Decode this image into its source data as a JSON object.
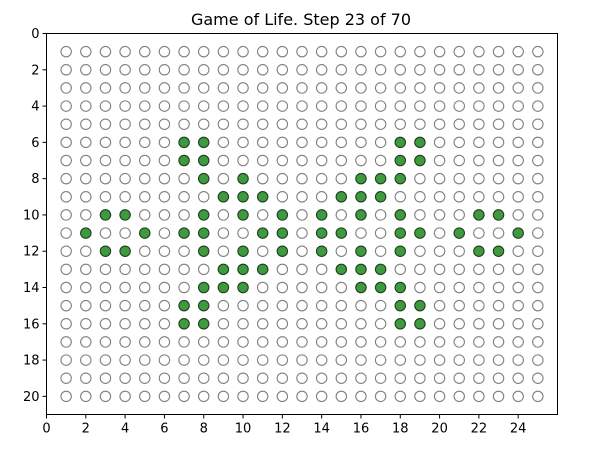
{
  "chart_data": {
    "type": "scatter",
    "title": "Game of Life. Step 23 of 70",
    "xlabel": "",
    "ylabel": "",
    "xlim": [
      0,
      26
    ],
    "ylim": [
      21,
      0
    ],
    "x_ticks": [
      0,
      2,
      4,
      6,
      8,
      10,
      12,
      14,
      16,
      18,
      20,
      22,
      24
    ],
    "y_ticks": [
      0,
      2,
      4,
      6,
      8,
      10,
      12,
      14,
      16,
      18,
      20
    ],
    "grid_cols": [
      1,
      25
    ],
    "grid_rows": [
      1,
      20
    ],
    "grid": false,
    "legend": "none",
    "colors": {
      "alive_fill": "#3f9a3f",
      "alive_edge": "#1f3f1f",
      "dead_edge": "#808080"
    },
    "alive_cells": [
      [
        7,
        6
      ],
      [
        8,
        6
      ],
      [
        18,
        6
      ],
      [
        19,
        6
      ],
      [
        7,
        7
      ],
      [
        8,
        7
      ],
      [
        18,
        7
      ],
      [
        19,
        7
      ],
      [
        8,
        8
      ],
      [
        10,
        8
      ],
      [
        16,
        8
      ],
      [
        17,
        8
      ],
      [
        18,
        8
      ],
      [
        9,
        9
      ],
      [
        10,
        9
      ],
      [
        11,
        9
      ],
      [
        15,
        9
      ],
      [
        16,
        9
      ],
      [
        17,
        9
      ],
      [
        3,
        10
      ],
      [
        4,
        10
      ],
      [
        8,
        10
      ],
      [
        10,
        10
      ],
      [
        12,
        10
      ],
      [
        14,
        10
      ],
      [
        16,
        10
      ],
      [
        18,
        10
      ],
      [
        22,
        10
      ],
      [
        23,
        10
      ],
      [
        2,
        11
      ],
      [
        5,
        11
      ],
      [
        7,
        11
      ],
      [
        8,
        11
      ],
      [
        11,
        11
      ],
      [
        12,
        11
      ],
      [
        14,
        11
      ],
      [
        15,
        11
      ],
      [
        18,
        11
      ],
      [
        19,
        11
      ],
      [
        21,
        11
      ],
      [
        24,
        11
      ],
      [
        3,
        12
      ],
      [
        4,
        12
      ],
      [
        8,
        12
      ],
      [
        10,
        12
      ],
      [
        12,
        12
      ],
      [
        14,
        12
      ],
      [
        16,
        12
      ],
      [
        18,
        12
      ],
      [
        22,
        12
      ],
      [
        23,
        12
      ],
      [
        9,
        13
      ],
      [
        10,
        13
      ],
      [
        11,
        13
      ],
      [
        15,
        13
      ],
      [
        16,
        13
      ],
      [
        17,
        13
      ],
      [
        8,
        14
      ],
      [
        9,
        14
      ],
      [
        10,
        14
      ],
      [
        16,
        14
      ],
      [
        17,
        14
      ],
      [
        18,
        14
      ],
      [
        7,
        15
      ],
      [
        8,
        15
      ],
      [
        18,
        15
      ],
      [
        19,
        15
      ],
      [
        7,
        16
      ],
      [
        8,
        16
      ],
      [
        18,
        16
      ],
      [
        19,
        16
      ]
    ]
  }
}
